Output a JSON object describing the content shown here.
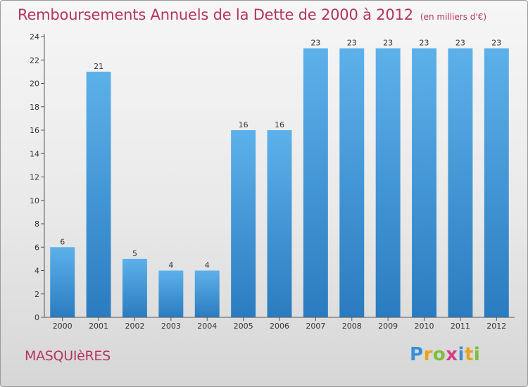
{
  "title": "Remboursements Annuels de la Dette de 2000 à 2012",
  "unit": "(en milliers d'€)",
  "commune": "MASQUIèRES",
  "logo": {
    "letters": [
      "P",
      "r",
      "o",
      "x",
      "i",
      "t",
      "i"
    ],
    "colors": [
      "#3a8fd8",
      "#e9a21e",
      "#7bbf3a",
      "#d93f86",
      "#3a8fd8",
      "#e9a21e",
      "#7bbf3a"
    ]
  },
  "colors": {
    "bar_light": "#5db1ea",
    "bar_dark": "#2a7cc0",
    "title": "#b5345e"
  },
  "chart_data": {
    "type": "bar",
    "categories": [
      "2000",
      "2001",
      "2002",
      "2003",
      "2004",
      "2005",
      "2006",
      "2007",
      "2008",
      "2009",
      "2010",
      "2011",
      "2012"
    ],
    "values": [
      6,
      21,
      5,
      4,
      4,
      16,
      16,
      23,
      23,
      23,
      23,
      23,
      23
    ],
    "data_labels": [
      "6",
      "21",
      "5",
      "4",
      "4",
      "16",
      "16",
      "23",
      "23",
      "23",
      "23",
      "23",
      "23"
    ],
    "yticks": [
      0,
      2,
      4,
      6,
      8,
      10,
      12,
      14,
      16,
      18,
      20,
      22,
      24
    ],
    "ylim": [
      0,
      24
    ],
    "grid": false
  }
}
